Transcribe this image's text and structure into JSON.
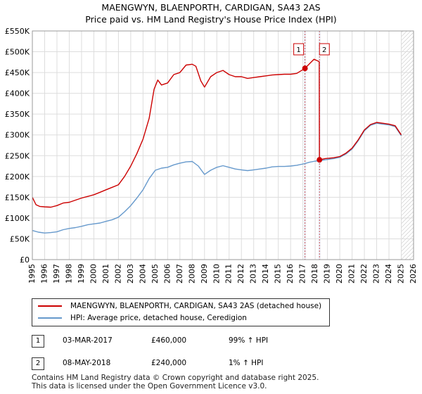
{
  "chart_data": {
    "type": "line",
    "title": "MAENGWYN, BLAENPORTH, CARDIGAN, SA43 2AS",
    "subtitle": "Price paid vs. HM Land Registry's House Price Index (HPI)",
    "xlabel": "",
    "ylabel": "",
    "xlim": [
      1995,
      2026
    ],
    "ylim": [
      0,
      550000
    ],
    "x_ticks": [
      "1995",
      "1996",
      "1997",
      "1998",
      "1999",
      "2000",
      "2001",
      "2002",
      "2003",
      "2004",
      "2005",
      "2006",
      "2007",
      "2008",
      "2009",
      "2010",
      "2011",
      "2012",
      "2013",
      "2014",
      "2015",
      "2016",
      "2017",
      "2018",
      "2019",
      "2020",
      "2021",
      "2022",
      "2023",
      "2024",
      "2025",
      "2026"
    ],
    "y_ticks": [
      {
        "value": 0,
        "label": "£0"
      },
      {
        "value": 50000,
        "label": "£50K"
      },
      {
        "value": 100000,
        "label": "£100K"
      },
      {
        "value": 150000,
        "label": "£150K"
      },
      {
        "value": 200000,
        "label": "£200K"
      },
      {
        "value": 250000,
        "label": "£250K"
      },
      {
        "value": 300000,
        "label": "£300K"
      },
      {
        "value": 350000,
        "label": "£350K"
      },
      {
        "value": 400000,
        "label": "£400K"
      },
      {
        "value": 450000,
        "label": "£450K"
      },
      {
        "value": 500000,
        "label": "£500K"
      },
      {
        "value": 550000,
        "label": "£550K"
      }
    ],
    "grid": true,
    "series": [
      {
        "name": "MAENGWYN, BLAENPORTH, CARDIGAN, SA43 2AS (detached house)",
        "color": "#cc0000",
        "points": [
          [
            1995.0,
            150000
          ],
          [
            1995.3,
            132000
          ],
          [
            1995.6,
            128000
          ],
          [
            1996.0,
            127000
          ],
          [
            1996.5,
            126000
          ],
          [
            1997.0,
            130000
          ],
          [
            1997.5,
            136000
          ],
          [
            1998.0,
            138000
          ],
          [
            1998.5,
            143000
          ],
          [
            1999.0,
            148000
          ],
          [
            1999.5,
            152000
          ],
          [
            2000.0,
            156000
          ],
          [
            2000.5,
            162000
          ],
          [
            2001.0,
            168000
          ],
          [
            2001.5,
            174000
          ],
          [
            2002.0,
            180000
          ],
          [
            2002.5,
            200000
          ],
          [
            2003.0,
            225000
          ],
          [
            2003.5,
            255000
          ],
          [
            2004.0,
            290000
          ],
          [
            2004.5,
            340000
          ],
          [
            2004.9,
            410000
          ],
          [
            2005.2,
            432000
          ],
          [
            2005.5,
            420000
          ],
          [
            2006.0,
            425000
          ],
          [
            2006.5,
            445000
          ],
          [
            2007.0,
            450000
          ],
          [
            2007.5,
            468000
          ],
          [
            2008.0,
            470000
          ],
          [
            2008.3,
            465000
          ],
          [
            2008.7,
            430000
          ],
          [
            2009.0,
            415000
          ],
          [
            2009.5,
            440000
          ],
          [
            2010.0,
            450000
          ],
          [
            2010.5,
            455000
          ],
          [
            2011.0,
            445000
          ],
          [
            2011.5,
            440000
          ],
          [
            2012.0,
            440000
          ],
          [
            2012.5,
            436000
          ],
          [
            2013.0,
            438000
          ],
          [
            2013.5,
            440000
          ],
          [
            2014.0,
            442000
          ],
          [
            2014.5,
            444000
          ],
          [
            2015.0,
            445000
          ],
          [
            2015.5,
            446000
          ],
          [
            2016.0,
            446000
          ],
          [
            2016.5,
            448000
          ],
          [
            2017.17,
            460000
          ],
          [
            2017.5,
            470000
          ],
          [
            2017.9,
            482000
          ],
          [
            2018.2,
            478000
          ],
          [
            2018.33,
            476000
          ],
          [
            2018.35,
            240000
          ],
          [
            2018.8,
            243000
          ],
          [
            2019.5,
            245000
          ],
          [
            2020.0,
            248000
          ],
          [
            2020.5,
            256000
          ],
          [
            2021.0,
            268000
          ],
          [
            2021.5,
            288000
          ],
          [
            2022.0,
            312000
          ],
          [
            2022.5,
            325000
          ],
          [
            2023.0,
            330000
          ],
          [
            2023.5,
            328000
          ],
          [
            2024.0,
            326000
          ],
          [
            2024.5,
            322000
          ],
          [
            2025.0,
            300000
          ]
        ]
      },
      {
        "name": "HPI: Average price, detached house, Ceredigion",
        "color": "#6699cc",
        "points": [
          [
            1995.0,
            70000
          ],
          [
            1995.5,
            66000
          ],
          [
            1996.0,
            64000
          ],
          [
            1996.5,
            65000
          ],
          [
            1997.0,
            67000
          ],
          [
            1997.5,
            72000
          ],
          [
            1998.0,
            75000
          ],
          [
            1998.5,
            77000
          ],
          [
            1999.0,
            80000
          ],
          [
            1999.5,
            84000
          ],
          [
            2000.0,
            86000
          ],
          [
            2000.5,
            88000
          ],
          [
            2001.0,
            92000
          ],
          [
            2001.5,
            96000
          ],
          [
            2002.0,
            102000
          ],
          [
            2002.5,
            115000
          ],
          [
            2003.0,
            130000
          ],
          [
            2003.5,
            148000
          ],
          [
            2004.0,
            168000
          ],
          [
            2004.5,
            195000
          ],
          [
            2005.0,
            215000
          ],
          [
            2005.5,
            220000
          ],
          [
            2006.0,
            222000
          ],
          [
            2006.5,
            228000
          ],
          [
            2007.0,
            232000
          ],
          [
            2007.5,
            235000
          ],
          [
            2008.0,
            236000
          ],
          [
            2008.5,
            225000
          ],
          [
            2009.0,
            205000
          ],
          [
            2009.5,
            215000
          ],
          [
            2010.0,
            222000
          ],
          [
            2010.5,
            226000
          ],
          [
            2011.0,
            222000
          ],
          [
            2011.5,
            218000
          ],
          [
            2012.0,
            216000
          ],
          [
            2012.5,
            214000
          ],
          [
            2013.0,
            216000
          ],
          [
            2013.5,
            218000
          ],
          [
            2014.0,
            220000
          ],
          [
            2014.5,
            223000
          ],
          [
            2015.0,
            224000
          ],
          [
            2015.5,
            224000
          ],
          [
            2016.0,
            225000
          ],
          [
            2016.5,
            227000
          ],
          [
            2017.17,
            231000
          ],
          [
            2017.5,
            234000
          ],
          [
            2018.0,
            237000
          ],
          [
            2018.35,
            238000
          ],
          [
            2018.8,
            240000
          ],
          [
            2019.5,
            243000
          ],
          [
            2020.0,
            246000
          ],
          [
            2020.5,
            254000
          ],
          [
            2021.0,
            266000
          ],
          [
            2021.5,
            286000
          ],
          [
            2022.0,
            310000
          ],
          [
            2022.5,
            323000
          ],
          [
            2023.0,
            328000
          ],
          [
            2023.5,
            326000
          ],
          [
            2024.0,
            324000
          ],
          [
            2024.5,
            320000
          ],
          [
            2025.0,
            298000
          ]
        ]
      }
    ],
    "markers": [
      {
        "label": "1",
        "x": 2017.17,
        "value": 460000
      },
      {
        "label": "2",
        "x": 2018.35,
        "value": 240000
      }
    ],
    "forecast_start": 2025.0
  },
  "legend": {
    "items": [
      {
        "label": "MAENGWYN, BLAENPORTH, CARDIGAN, SA43 2AS (detached house)",
        "color": "#cc0000"
      },
      {
        "label": "HPI: Average price, detached house, Ceredigion",
        "color": "#6699cc"
      }
    ]
  },
  "transactions": [
    {
      "num": "1",
      "date": "03-MAR-2017",
      "price": "£460,000",
      "hpi": "99% ↑ HPI"
    },
    {
      "num": "2",
      "date": "08-MAY-2018",
      "price": "£240,000",
      "hpi": "1% ↑ HPI"
    }
  ],
  "footer": {
    "line1": "Contains HM Land Registry data © Crown copyright and database right 2025.",
    "line2": "This data is licensed under the Open Government Licence v3.0."
  }
}
